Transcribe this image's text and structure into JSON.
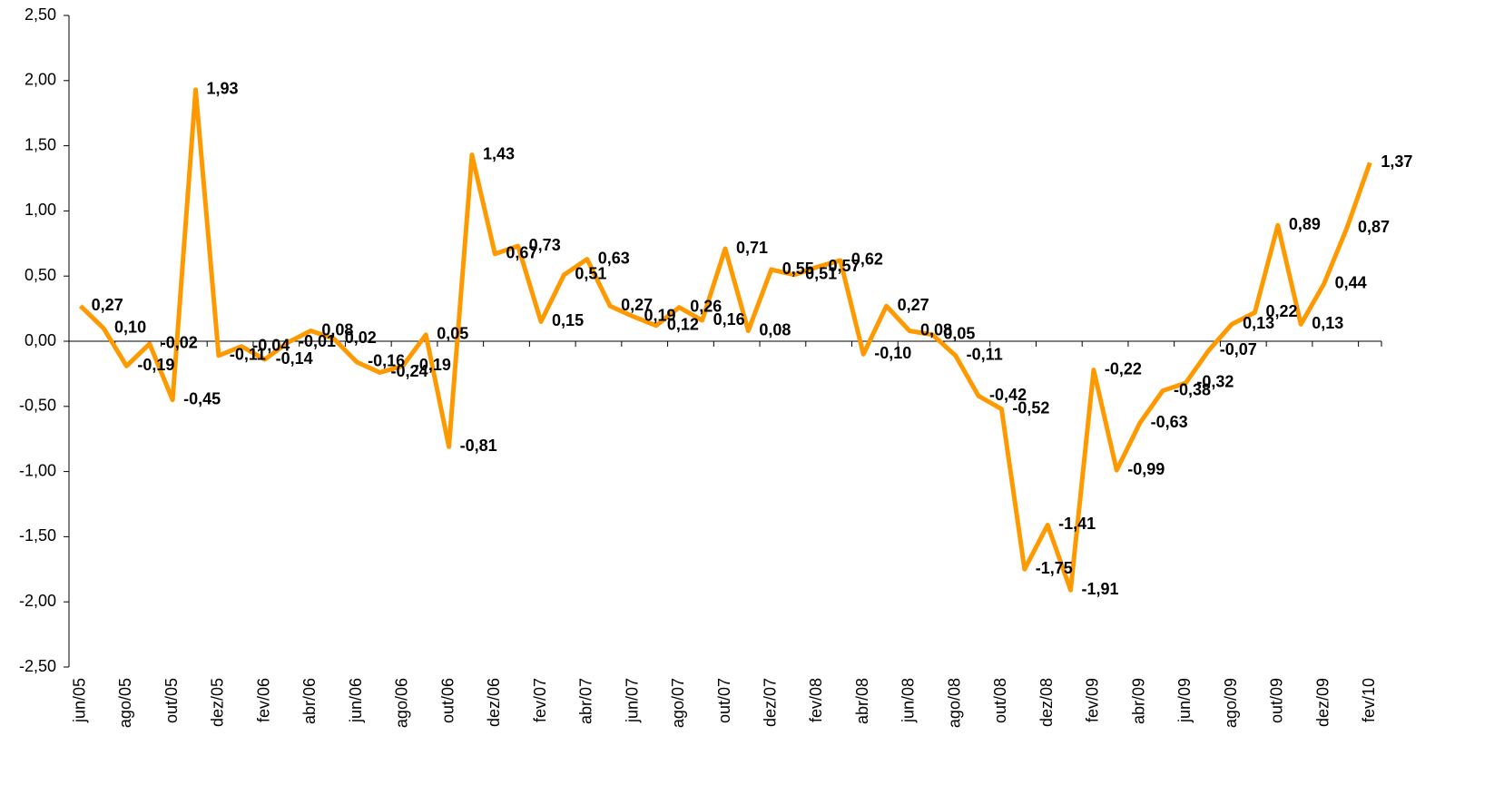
{
  "chart_data": {
    "type": "line",
    "categories": [
      "jun/05",
      null,
      "ago/05",
      null,
      "out/05",
      null,
      "dez/05",
      null,
      "fev/06",
      null,
      "abr/06",
      null,
      "jun/06",
      null,
      "ago/06",
      null,
      "out/06",
      null,
      "dez/06",
      null,
      "fev/07",
      null,
      "abr/07",
      null,
      "jun/07",
      null,
      "ago/07",
      null,
      "out/07",
      null,
      "dez/07",
      null,
      "fev/08",
      null,
      "abr/08",
      null,
      "jun/08",
      null,
      "ago/08",
      null,
      "out/08",
      null,
      "dez/08",
      null,
      "fev/09",
      null,
      "abr/09",
      null,
      "jun/09",
      null,
      "ago/09",
      null,
      "out/09",
      null,
      "dez/09",
      null,
      "fev/10"
    ],
    "series": [
      {
        "color": "#ff9900",
        "values": [
          0.27,
          0.1,
          -0.19,
          -0.02,
          -0.45,
          1.93,
          -0.11,
          -0.04,
          -0.14,
          -0.01,
          0.08,
          0.02,
          -0.16,
          -0.24,
          -0.19,
          0.05,
          -0.81,
          1.43,
          0.67,
          0.73,
          0.15,
          0.51,
          0.63,
          0.27,
          0.19,
          0.12,
          0.26,
          0.16,
          0.71,
          0.08,
          0.55,
          0.51,
          0.57,
          0.62,
          -0.1,
          0.27,
          0.08,
          0.05,
          -0.11,
          -0.42,
          -0.52,
          -1.75,
          -1.41,
          -1.91,
          -0.22,
          -0.99,
          -0.63,
          -0.38,
          -0.32,
          -0.07,
          0.13,
          0.22,
          0.89,
          0.13,
          0.44,
          0.87,
          1.37
        ],
        "value_labels": [
          "0,27",
          "0,10",
          "-0,19",
          "-0,02",
          "-0,45",
          "1,93",
          "-0,11",
          "-0,04",
          "-0,14",
          "-0,01",
          "0,08",
          "0,02",
          "-0,16",
          "-0,24",
          "-0,19",
          "0,05",
          "-0,81",
          "1,43",
          "0,67",
          "0,73",
          "0,15",
          "0,51",
          "0,63",
          "0,27",
          "0,19",
          "0,12",
          "0,26",
          "0,16",
          "0,71",
          "0,08",
          "0,55",
          "0,51",
          "0,57",
          "0,62",
          "-0,10",
          "0,27",
          "0,08",
          "0,05",
          "-0,11",
          "-0,42",
          "-0,52",
          "-1,75",
          "-1,41",
          "-1,91",
          "-0,22",
          "-0,99",
          "-0,63",
          "-0,38",
          "-0,32",
          "-0,07",
          "0,13",
          "0,22",
          "0,89",
          "0,13",
          "0,44",
          "0,87",
          "1,37"
        ]
      }
    ],
    "ylim": [
      -2.5,
      2.5
    ],
    "yticks": [
      {
        "value": -2.5,
        "label": "-2,50"
      },
      {
        "value": -2,
        "label": "-2,00"
      },
      {
        "value": -1.5,
        "label": "-1,50"
      },
      {
        "value": -1,
        "label": "-1,00"
      },
      {
        "value": -0.5,
        "label": "-0,50"
      },
      {
        "value": 0,
        "label": "0,00"
      },
      {
        "value": 0.5,
        "label": "0,50"
      },
      {
        "value": 1,
        "label": "1,00"
      },
      {
        "value": 1.5,
        "label": "1,50"
      },
      {
        "value": 2,
        "label": "2,00"
      },
      {
        "value": 2.5,
        "label": "2,50"
      }
    ]
  }
}
